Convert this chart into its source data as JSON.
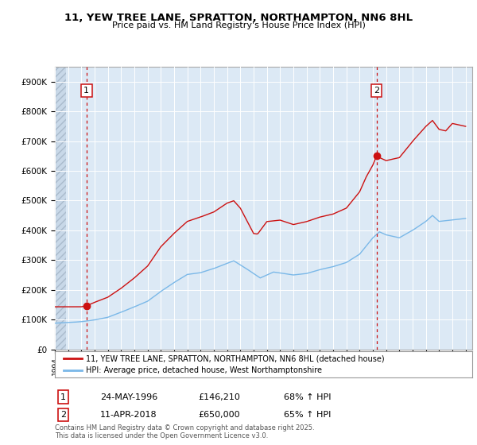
{
  "title": "11, YEW TREE LANE, SPRATTON, NORTHAMPTON, NN6 8HL",
  "subtitle": "Price paid vs. HM Land Registry's House Price Index (HPI)",
  "xlim": [
    1994.0,
    2025.5
  ],
  "ylim": [
    0,
    950000
  ],
  "yticks": [
    0,
    100000,
    200000,
    300000,
    400000,
    500000,
    600000,
    700000,
    800000,
    900000
  ],
  "ytick_labels": [
    "£0",
    "£100K",
    "£200K",
    "£300K",
    "£400K",
    "£500K",
    "£600K",
    "£700K",
    "£800K",
    "£900K"
  ],
  "sale1_x": 1996.38,
  "sale1_y": 146210,
  "sale2_x": 2018.27,
  "sale2_y": 650000,
  "hpi_color": "#7ab8e8",
  "property_color": "#cc1111",
  "vline_color": "#cc1111",
  "legend_property": "11, YEW TREE LANE, SPRATTON, NORTHAMPTON, NN6 8HL (detached house)",
  "legend_hpi": "HPI: Average price, detached house, West Northamptonshire",
  "footnote": "Contains HM Land Registry data © Crown copyright and database right 2025.\nThis data is licensed under the Open Government Licence v3.0.",
  "bg_color": "#ffffff",
  "plot_bg": "#dce9f5",
  "hatch_bg": "#c8d8e8"
}
